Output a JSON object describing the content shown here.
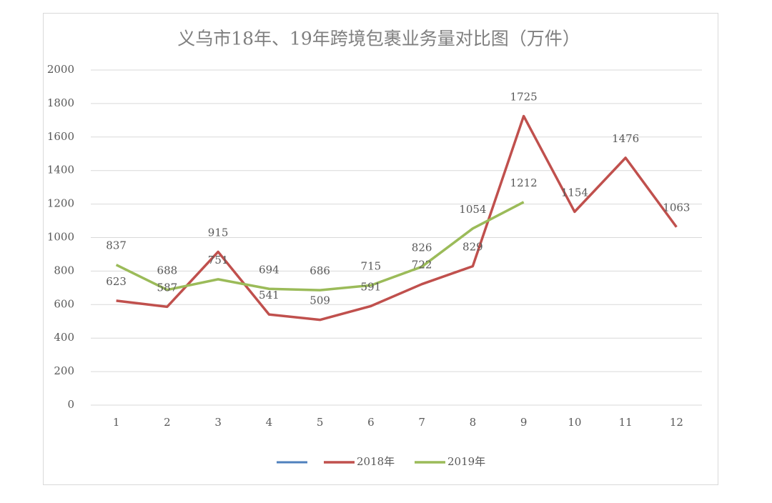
{
  "chart_data": {
    "type": "line",
    "title": "义乌市18年、19年跨境包裹业务量对比图（万件）",
    "categories": [
      "1",
      "2",
      "3",
      "4",
      "5",
      "6",
      "7",
      "8",
      "9",
      "10",
      "11",
      "12"
    ],
    "series": [
      {
        "name": "2018年",
        "color": "#c0504d",
        "values": [
          623,
          587,
          915,
          541,
          509,
          591,
          722,
          829,
          1725,
          1154,
          1476,
          1063
        ]
      },
      {
        "name": "2019年",
        "color": "#9bbb59",
        "values": [
          837,
          688,
          751,
          694,
          686,
          715,
          826,
          1054,
          1212,
          null,
          null,
          null
        ]
      }
    ],
    "ylim": [
      0,
      2000
    ],
    "yticks": [
      0,
      200,
      400,
      600,
      800,
      1000,
      1200,
      1400,
      1600,
      1800,
      2000
    ],
    "grid": true,
    "legend": "bottom"
  }
}
